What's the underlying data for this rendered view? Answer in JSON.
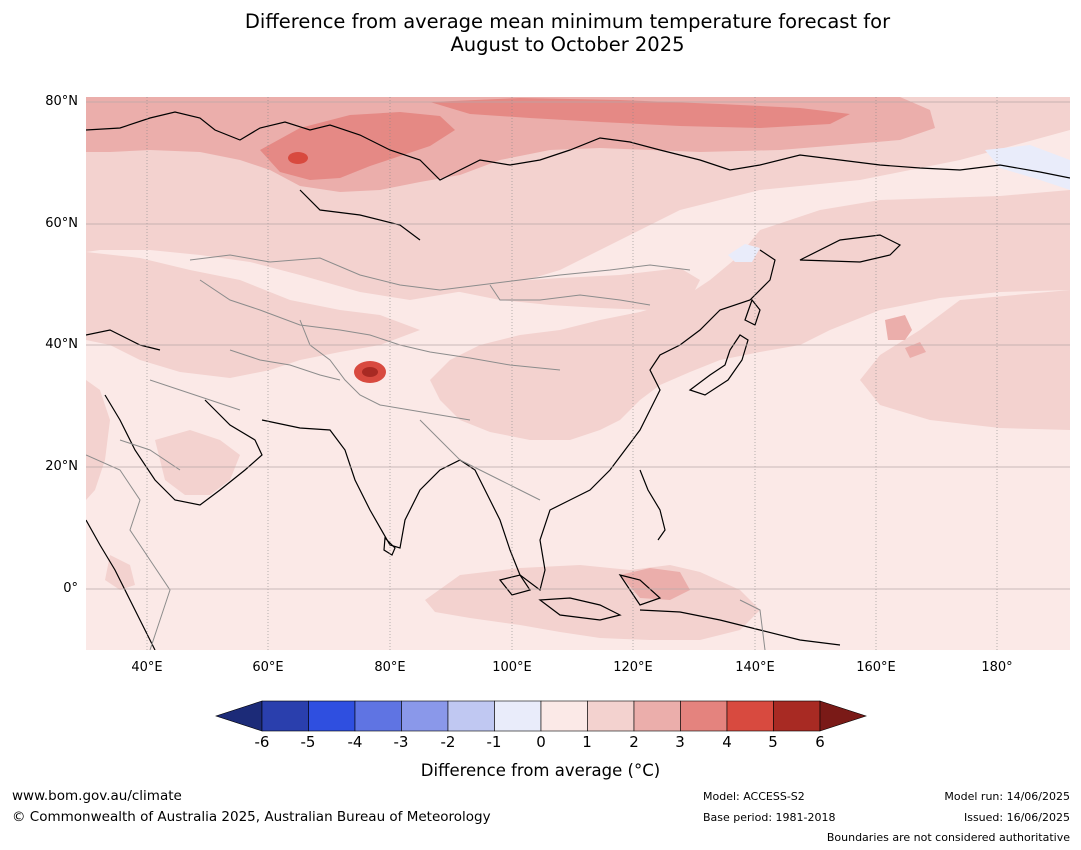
{
  "title_line1": "Difference from average mean minimum temperature forecast for",
  "title_line2": "August to October 2025",
  "latitude_labels": [
    "80°N",
    "60°N",
    "40°N",
    "20°N",
    "0°"
  ],
  "longitude_labels": [
    "40°E",
    "60°E",
    "80°E",
    "100°E",
    "120°E",
    "140°E",
    "160°E",
    "180°"
  ],
  "colorbar": {
    "ticks": [
      "-6",
      "-5",
      "-4",
      "-3",
      "-2",
      "-1",
      "0",
      "1",
      "2",
      "3",
      "4",
      "5",
      "6"
    ],
    "colors": [
      "#1c2b78",
      "#2a3fad",
      "#2f4fe0",
      "#5f74e3",
      "#8a98ea",
      "#c0c8f2",
      "#e9ecfa",
      "#fbe9e7",
      "#f3d2cf",
      "#ebaeab",
      "#e4837e",
      "#d84a3f",
      "#a82a23",
      "#7a1a17"
    ],
    "label": "Difference from average (°C)"
  },
  "footer": {
    "website": "www.bom.gov.au/climate",
    "copyright": "© Commonwealth of Australia 2025, Australian Bureau of Meteorology",
    "model": "Model: ACCESS-S2",
    "base_period": "Base period: 1981-2018",
    "model_run": "Model run: 14/06/2025",
    "issued": "Issued: 16/06/2025",
    "disclaimer": "Boundaries are not considered authoritative"
  }
}
